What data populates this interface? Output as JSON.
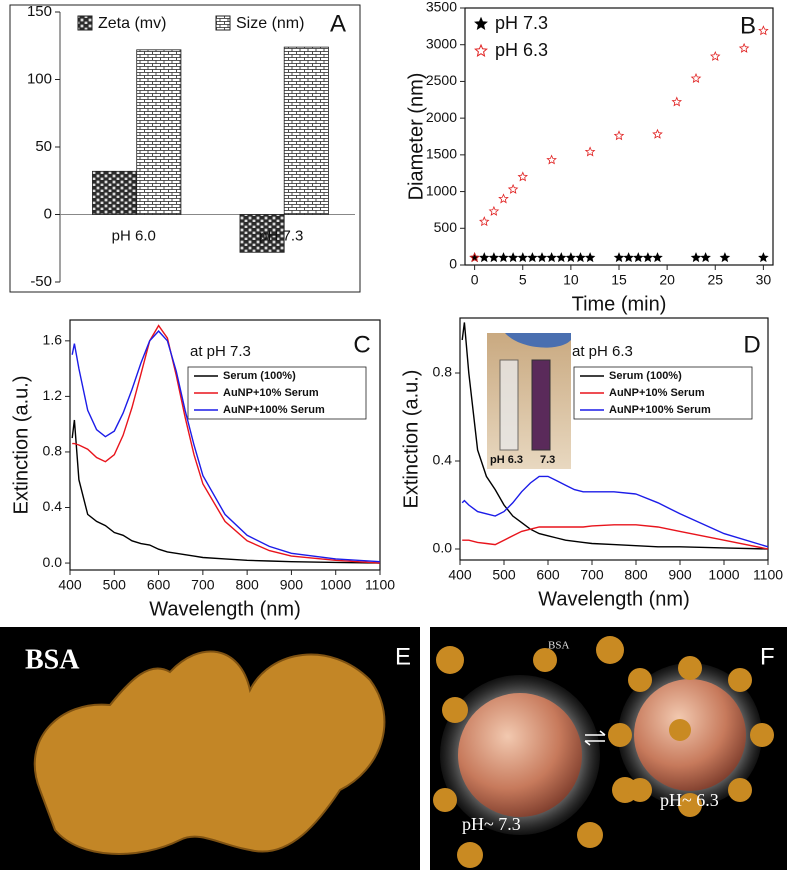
{
  "chart_data": [
    {
      "type": "bar",
      "panel_label": "A",
      "categories": [
        "pH 6.0",
        "pH 7.3"
      ],
      "series": [
        {
          "name": "Zeta (mv)",
          "color": "#2b2b2b",
          "values": [
            32,
            -28
          ]
        },
        {
          "name": "Size (nm)",
          "color": "#ffffff",
          "values": [
            122,
            124
          ]
        }
      ],
      "ylim": [
        -50,
        150
      ],
      "yticks": [
        -50,
        0,
        50,
        100,
        150
      ]
    },
    {
      "type": "scatter",
      "panel_label": "B",
      "xlabel": "Time (min)",
      "ylabel": "Diameter (nm)",
      "series": [
        {
          "name": "pH 7.3",
          "color": "#000000",
          "marker": "filled-star",
          "x": [
            0,
            1,
            2,
            3,
            4,
            5,
            6,
            7,
            8,
            9,
            10,
            11,
            12,
            15,
            16,
            17,
            18,
            19,
            23,
            24,
            26,
            30
          ],
          "values": [
            100,
            100,
            100,
            100,
            100,
            100,
            100,
            100,
            100,
            100,
            100,
            100,
            100,
            100,
            100,
            100,
            100,
            100,
            100,
            100,
            100,
            100
          ]
        },
        {
          "name": "pH 6.3",
          "color": "#e02020",
          "marker": "hollow-star",
          "x": [
            0,
            1,
            2,
            3,
            4,
            5,
            8,
            12,
            15,
            19,
            21,
            23,
            25,
            28,
            30
          ],
          "values": [
            100,
            590,
            730,
            900,
            1030,
            1200,
            1430,
            1540,
            1760,
            1780,
            2220,
            2540,
            2840,
            2950,
            3190
          ]
        }
      ],
      "xlim": [
        -1,
        31
      ],
      "xticks": [
        0,
        5,
        10,
        15,
        20,
        25,
        30
      ],
      "ylim": [
        0,
        3500
      ],
      "yticks": [
        0,
        500,
        1000,
        1500,
        2000,
        2500,
        3000,
        3500
      ]
    },
    {
      "type": "line",
      "panel_label": "C",
      "annotation": "at pH 7.3",
      "xlabel": "Wavelength (nm)",
      "ylabel": "Extinction (a.u.)",
      "x": [
        405,
        410,
        420,
        440,
        460,
        480,
        500,
        520,
        540,
        560,
        580,
        600,
        620,
        640,
        660,
        680,
        700,
        750,
        800,
        850,
        900,
        1000,
        1100
      ],
      "series": [
        {
          "name": "Serum (100%)",
          "color": "#000000",
          "values": [
            0.9,
            1.03,
            0.6,
            0.35,
            0.3,
            0.27,
            0.22,
            0.2,
            0.16,
            0.14,
            0.13,
            0.1,
            0.08,
            0.07,
            0.06,
            0.05,
            0.04,
            0.03,
            0.02,
            0.015,
            0.01,
            0.005,
            0.0
          ]
        },
        {
          "name": "AuNP+10% Serum",
          "color": "#e8141c",
          "values": [
            0.86,
            0.86,
            0.85,
            0.82,
            0.76,
            0.73,
            0.78,
            0.92,
            1.12,
            1.36,
            1.6,
            1.71,
            1.62,
            1.35,
            1.05,
            0.78,
            0.57,
            0.3,
            0.16,
            0.09,
            0.05,
            0.02,
            0.0
          ]
        },
        {
          "name": "AuNP+100% Serum",
          "color": "#1c1ce8",
          "values": [
            1.5,
            1.58,
            1.4,
            1.1,
            0.96,
            0.91,
            0.95,
            1.08,
            1.25,
            1.44,
            1.6,
            1.67,
            1.6,
            1.38,
            1.1,
            0.85,
            0.63,
            0.35,
            0.2,
            0.12,
            0.07,
            0.03,
            0.01
          ]
        }
      ],
      "xlim": [
        400,
        1100
      ],
      "xticks": [
        400,
        500,
        600,
        700,
        800,
        900,
        1000,
        1100
      ],
      "ylim": [
        -0.05,
        1.75
      ],
      "yticks": [
        {
          "value": 0,
          "label": "0.0"
        },
        0.4,
        0.8,
        1.2,
        1.6
      ]
    },
    {
      "type": "line",
      "panel_label": "D",
      "annotation": "at pH 6.3",
      "inset_labels": [
        "pH 6.3",
        "7.3"
      ],
      "xlabel": "Wavelength (nm)",
      "ylabel": "Extinction (a.u.)",
      "x": [
        405,
        410,
        420,
        440,
        460,
        480,
        500,
        520,
        540,
        560,
        580,
        600,
        620,
        640,
        660,
        680,
        700,
        750,
        800,
        850,
        900,
        1000,
        1100
      ],
      "series": [
        {
          "name": "Serum (100%)",
          "color": "#000000",
          "values": [
            0.95,
            1.03,
            0.8,
            0.45,
            0.33,
            0.27,
            0.2,
            0.15,
            0.12,
            0.09,
            0.07,
            0.06,
            0.05,
            0.04,
            0.035,
            0.03,
            0.025,
            0.02,
            0.015,
            0.01,
            0.01,
            0.005,
            0.0
          ]
        },
        {
          "name": "AuNP+10% Serum",
          "color": "#e8141c",
          "values": [
            0.04,
            0.04,
            0.04,
            0.03,
            0.025,
            0.02,
            0.04,
            0.06,
            0.08,
            0.09,
            0.1,
            0.1,
            0.1,
            0.1,
            0.1,
            0.1,
            0.105,
            0.11,
            0.11,
            0.1,
            0.08,
            0.04,
            0.0
          ]
        },
        {
          "name": "AuNP+100% Serum",
          "color": "#1c1ce8",
          "values": [
            0.21,
            0.22,
            0.2,
            0.17,
            0.16,
            0.15,
            0.17,
            0.21,
            0.26,
            0.3,
            0.33,
            0.33,
            0.31,
            0.29,
            0.27,
            0.26,
            0.26,
            0.26,
            0.25,
            0.21,
            0.16,
            0.07,
            0.01
          ]
        }
      ],
      "xlim": [
        400,
        1100
      ],
      "xticks": [
        400,
        500,
        600,
        700,
        800,
        900,
        1000,
        1100
      ],
      "ylim": [
        -0.05,
        1.05
      ],
      "yticks": [
        {
          "value": 0,
          "label": "0.0"
        },
        0.4,
        0.8
      ]
    }
  ],
  "images": [
    {
      "panel_label": "E",
      "title": "BSA"
    },
    {
      "panel_label": "F",
      "labels": [
        "BSA",
        "pH~ 7.3",
        "pH~ 6.3"
      ]
    }
  ]
}
